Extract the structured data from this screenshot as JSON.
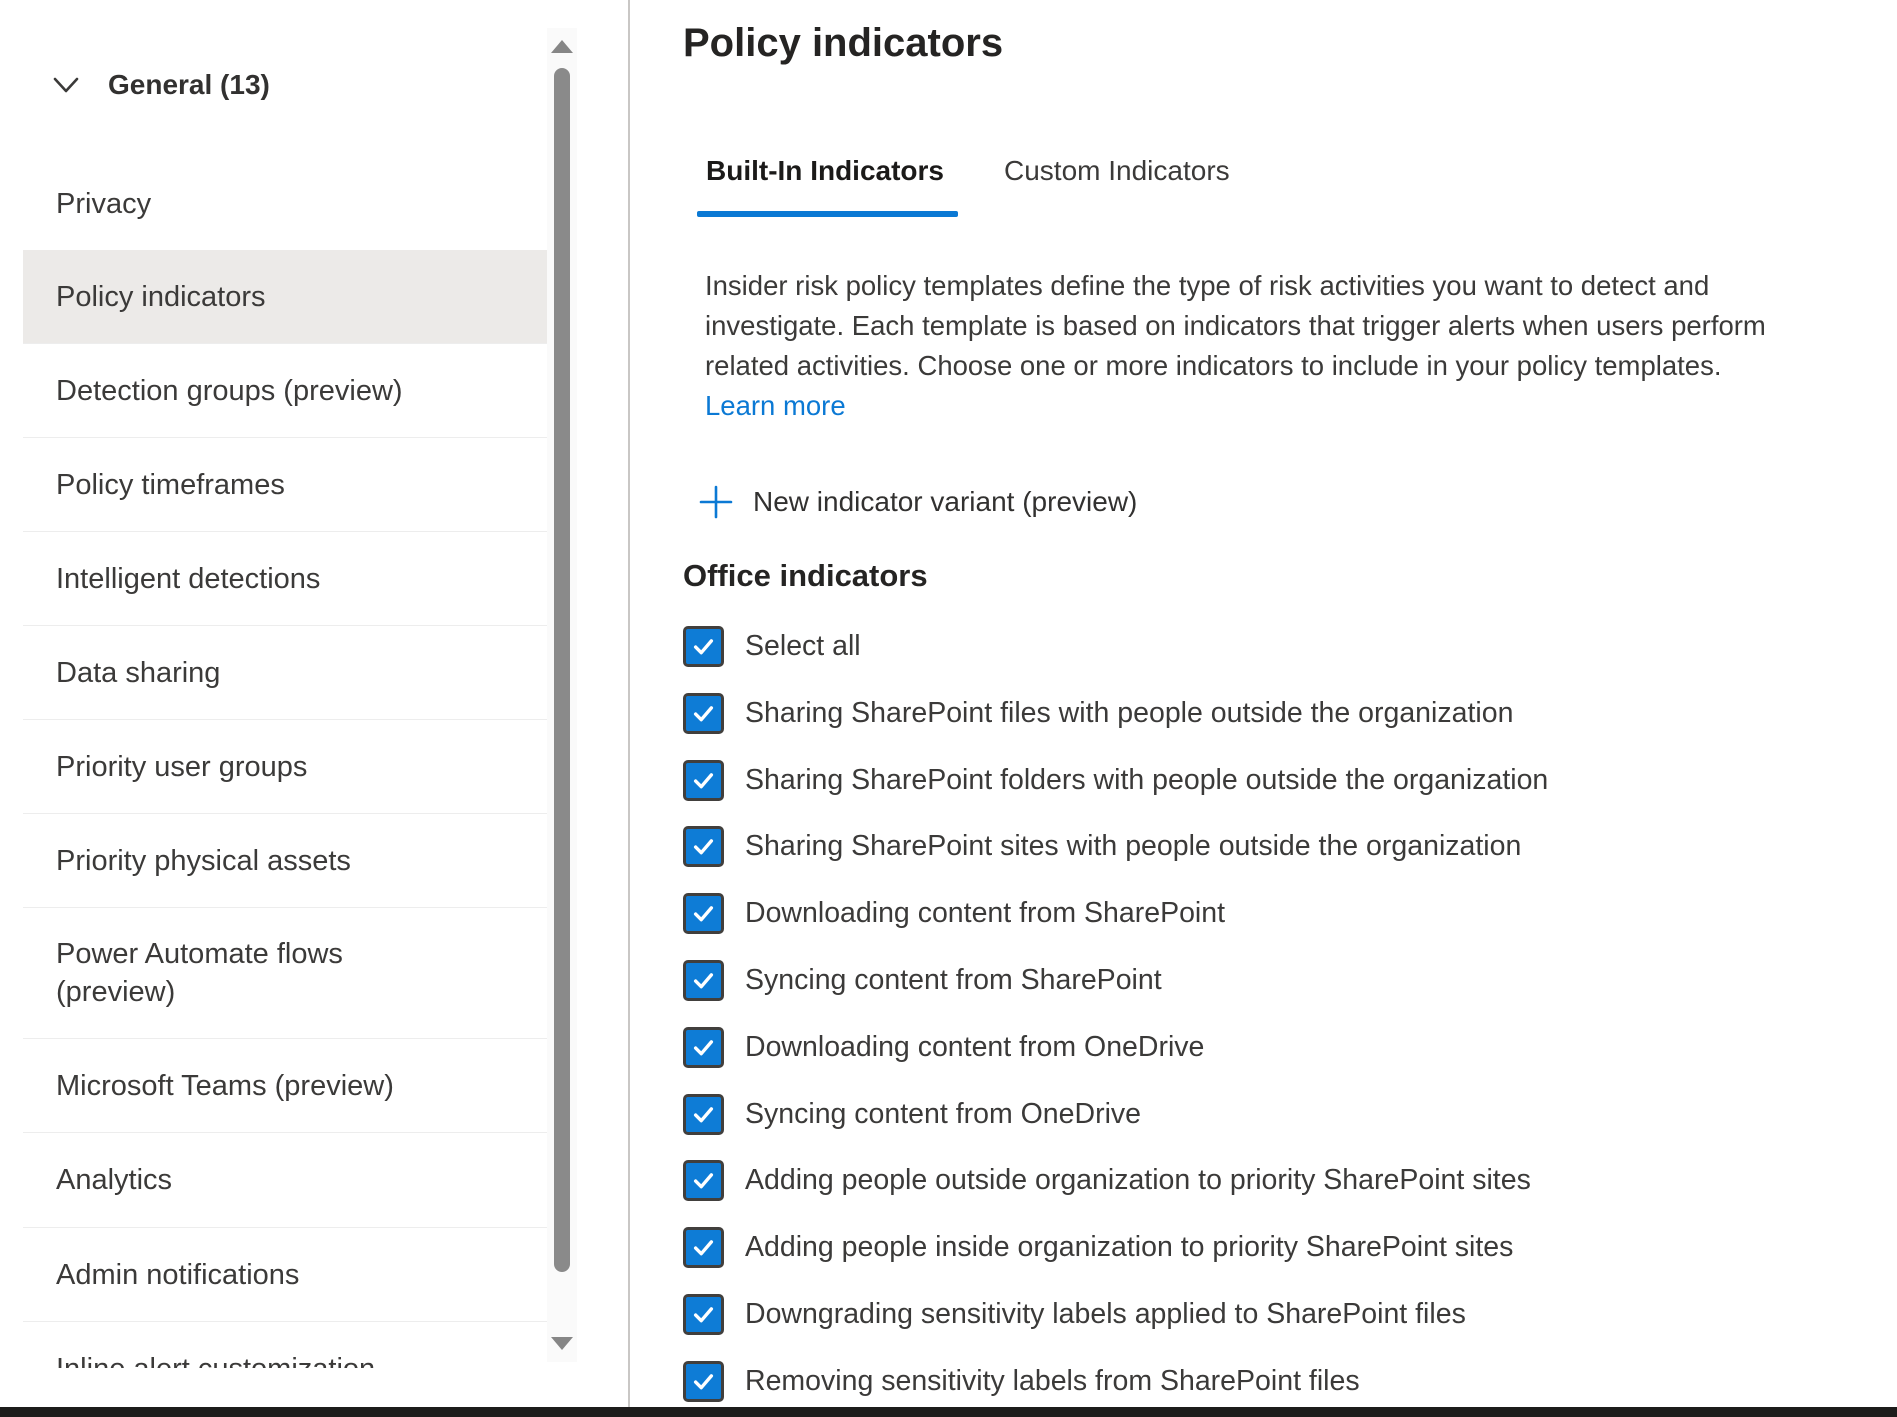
{
  "sidebar": {
    "group_label": "General (13)",
    "items": [
      {
        "label": "Privacy"
      },
      {
        "label": "Policy indicators",
        "selected": true
      },
      {
        "label": "Detection groups (preview)"
      },
      {
        "label": "Policy timeframes"
      },
      {
        "label": "Intelligent detections"
      },
      {
        "label": "Data sharing"
      },
      {
        "label": "Priority user groups"
      },
      {
        "label": "Priority physical assets"
      },
      {
        "label": "Power Automate flows (preview)",
        "two_line": true
      },
      {
        "label": "Microsoft Teams (preview)"
      },
      {
        "label": "Analytics"
      },
      {
        "label": "Admin notifications"
      },
      {
        "label": "Inline alert customization",
        "clipped": true
      }
    ]
  },
  "main": {
    "title": "Policy indicators",
    "tabs": [
      {
        "label": "Built-In Indicators",
        "active": true
      },
      {
        "label": "Custom Indicators",
        "active": false
      }
    ],
    "description_lines": [
      "Insider risk policy templates define the type of risk activities you want to detect and",
      "investigate. Each template is based on indicators that trigger alerts when users perform",
      "related activities. Choose one or more indicators to include in your policy templates."
    ],
    "learn_more_label": "Learn more",
    "new_variant_label": "New indicator variant (preview)",
    "section_heading": "Office indicators",
    "indicators": [
      {
        "label": "Select all",
        "checked": true
      },
      {
        "label": "Sharing SharePoint files with people outside the organization",
        "checked": true
      },
      {
        "label": "Sharing SharePoint folders with people outside the organization",
        "checked": true
      },
      {
        "label": "Sharing SharePoint sites with people outside the organization",
        "checked": true
      },
      {
        "label": "Downloading content from SharePoint",
        "checked": true
      },
      {
        "label": "Syncing content from SharePoint",
        "checked": true
      },
      {
        "label": "Downloading content from OneDrive",
        "checked": true
      },
      {
        "label": "Syncing content from OneDrive",
        "checked": true
      },
      {
        "label": "Adding people outside organization to priority SharePoint sites",
        "checked": true
      },
      {
        "label": "Adding people inside organization to priority SharePoint sites",
        "checked": true
      },
      {
        "label": "Downgrading sensitivity labels applied to SharePoint files",
        "checked": true
      },
      {
        "label": "Removing sensitivity labels from SharePoint files",
        "checked": true
      }
    ]
  },
  "colors": {
    "accent_blue": "#0b79d4",
    "checkbox_fill": "#0e7cd6",
    "checkbox_border": "#413f3d",
    "selected_item_bg": "#eceae8",
    "separator": "#ededed",
    "divider": "#c9c7c5",
    "scrollbar_thumb": "#8a8a8a",
    "bottom_bar": "#1d1c1b",
    "text_dark": "#252423",
    "text_body": "#3b3a39"
  }
}
